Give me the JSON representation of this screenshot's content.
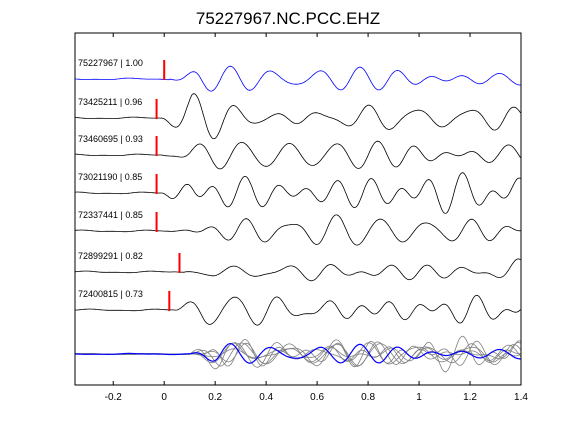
{
  "chart_data": {
    "type": "line",
    "title": "75227967.NC.PCC.EHZ",
    "xlabel": "",
    "ylabel": "",
    "xlim": [
      -0.35,
      1.4
    ],
    "xticks": [
      -0.2,
      0,
      0.2,
      0.4,
      0.6,
      0.8,
      1,
      1.2,
      1.4
    ],
    "xtick_labels": [
      "-0.2",
      "0",
      "0.2",
      "0.4",
      "0.6",
      "0.8",
      "1",
      "1.2",
      "1.4"
    ],
    "grid": false,
    "colors": {
      "reference": "#0000ff",
      "trace": "#000000",
      "pick": "#ff0000",
      "overlay": "#808080"
    },
    "traces": [
      {
        "label": "75227967 | 1.00",
        "pick": 0.0,
        "color": "#0000ff"
      },
      {
        "label": "73425211 | 0.96",
        "pick": -0.03,
        "color": "#000000"
      },
      {
        "label": "73460695 | 0.93",
        "pick": -0.03,
        "color": "#000000"
      },
      {
        "label": "73021190 | 0.85",
        "pick": -0.03,
        "color": "#000000"
      },
      {
        "label": "72337441 | 0.85",
        "pick": -0.03,
        "color": "#000000"
      },
      {
        "label": "72899291 | 0.82",
        "pick": 0.06,
        "color": "#000000"
      },
      {
        "label": "72400815 | 0.73",
        "pick": 0.02,
        "color": "#000000"
      }
    ],
    "stack": {
      "label": "",
      "reference_color": "#0000ff",
      "overlay_color": "#808080"
    }
  }
}
